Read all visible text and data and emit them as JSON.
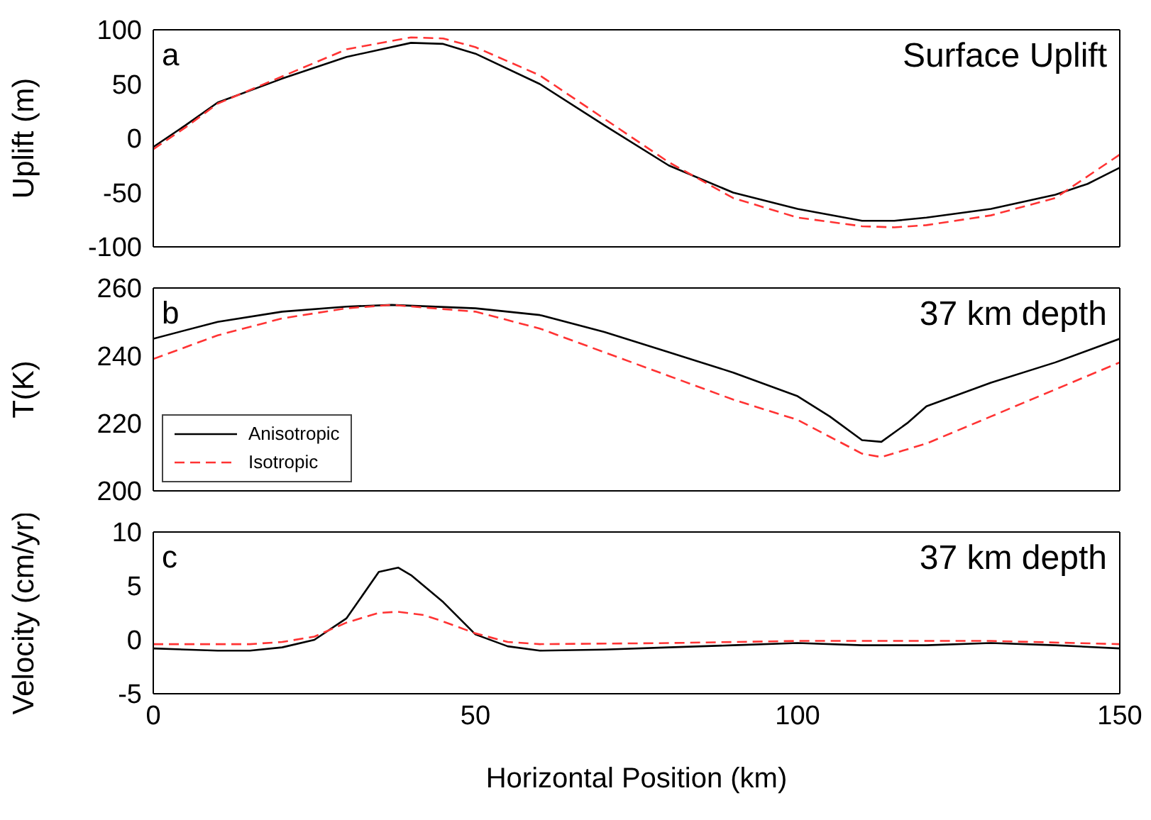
{
  "chart_data": [
    {
      "type": "line",
      "ylabel": "Uplift (m)",
      "annotations": [
        "a",
        "Surface Uplift"
      ],
      "xlim": [
        0,
        150
      ],
      "xticks": [
        0,
        50,
        100,
        150
      ],
      "ylim": [
        -100,
        100
      ],
      "yticks": [
        -100,
        -50,
        0,
        50,
        100
      ],
      "tick_labels": "y",
      "series": [
        {
          "color": "#000000",
          "line_style": "solid",
          "x": [
            0,
            5,
            10,
            20,
            30,
            40,
            45,
            50,
            60,
            70,
            80,
            90,
            100,
            110,
            115,
            120,
            130,
            140,
            145,
            150
          ],
          "values": [
            -8,
            12,
            33,
            55,
            75,
            88,
            87,
            78,
            50,
            12,
            -25,
            -50,
            -65,
            -76,
            -76,
            -73,
            -65,
            -52,
            -42,
            -27
          ]
        },
        {
          "color": "#ff3333",
          "line_style": "dashed",
          "x": [
            0,
            5,
            10,
            20,
            30,
            40,
            45,
            50,
            60,
            70,
            80,
            90,
            100,
            110,
            115,
            120,
            130,
            140,
            150
          ],
          "values": [
            -10,
            10,
            32,
            57,
            82,
            93,
            92,
            84,
            58,
            18,
            -22,
            -55,
            -73,
            -81,
            -82,
            -80,
            -71,
            -55,
            -15
          ]
        }
      ]
    },
    {
      "type": "line",
      "ylabel": "T(K)",
      "annotations": [
        "b",
        "37 km depth"
      ],
      "xlim": [
        0,
        150
      ],
      "xticks": [
        0,
        50,
        100,
        150
      ],
      "ylim": [
        200,
        260
      ],
      "yticks": [
        200,
        220,
        240,
        260
      ],
      "tick_labels": "y",
      "legend": "bottom left",
      "series": [
        {
          "name": "Anisotropic",
          "color": "#000000",
          "line_style": "solid",
          "x": [
            0,
            10,
            20,
            30,
            37,
            50,
            60,
            70,
            80,
            90,
            100,
            105,
            110,
            113,
            117,
            120,
            130,
            140,
            150
          ],
          "values": [
            245,
            250,
            253,
            254.5,
            255,
            254,
            252,
            247,
            241,
            235,
            228,
            222,
            215,
            214.5,
            220,
            225,
            232,
            238,
            245
          ]
        },
        {
          "name": "Isotropic",
          "color": "#ff3333",
          "line_style": "dashed",
          "x": [
            0,
            10,
            20,
            30,
            37,
            50,
            60,
            70,
            80,
            90,
            100,
            105,
            110,
            113,
            120,
            130,
            140,
            150
          ],
          "values": [
            239,
            246,
            251,
            254,
            255,
            253,
            248,
            241,
            234,
            227,
            221,
            216,
            211,
            210,
            214,
            222,
            230,
            238
          ]
        }
      ]
    },
    {
      "type": "line",
      "xlabel": "Horizontal Position (km)",
      "ylabel": "Velocity (cm/yr)",
      "annotations": [
        "c",
        "37 km depth"
      ],
      "xlim": [
        0,
        150
      ],
      "xticks": [
        0,
        50,
        100,
        150
      ],
      "ylim": [
        -5,
        10
      ],
      "yticks": [
        -5,
        0,
        5,
        10
      ],
      "series": [
        {
          "color": "#000000",
          "line_style": "solid",
          "x": [
            0,
            10,
            15,
            20,
            25,
            30,
            35,
            38,
            40,
            45,
            50,
            55,
            60,
            70,
            80,
            90,
            100,
            110,
            120,
            130,
            140,
            150
          ],
          "values": [
            -0.8,
            -1,
            -1,
            -0.7,
            0,
            2,
            6.3,
            6.7,
            6,
            3.5,
            0.5,
            -0.6,
            -1,
            -0.9,
            -0.7,
            -0.5,
            -0.3,
            -0.5,
            -0.5,
            -0.3,
            -0.5,
            -0.8
          ]
        },
        {
          "color": "#ff3333",
          "line_style": "dashed",
          "x": [
            0,
            15,
            20,
            25,
            30,
            35,
            38,
            42,
            45,
            50,
            55,
            60,
            80,
            100,
            120,
            130,
            150
          ],
          "values": [
            -0.4,
            -0.4,
            -0.2,
            0.3,
            1.6,
            2.5,
            2.6,
            2.3,
            1.7,
            0.6,
            -0.2,
            -0.4,
            -0.3,
            -0.1,
            -0.1,
            -0.1,
            -0.4
          ]
        }
      ]
    }
  ]
}
